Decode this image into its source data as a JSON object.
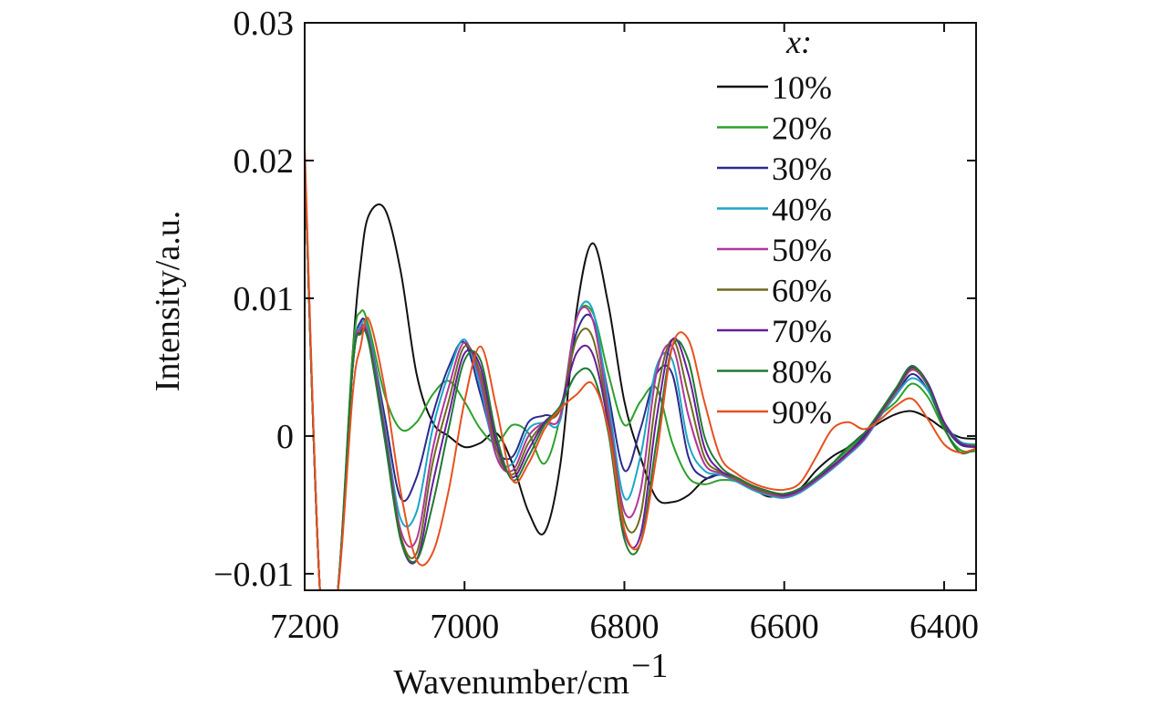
{
  "chart_data": {
    "type": "line",
    "title": "",
    "xlabel": "Wavenumber/cm",
    "xlabel_superscript": "−1",
    "ylabel": "Intensity/a.u.",
    "xlim": [
      7200,
      6360
    ],
    "ylim": [
      -0.0112,
      0.03
    ],
    "x_reversed": true,
    "grid": false,
    "legend_position": "top-right",
    "legend_title": "x:",
    "x_ticks": [
      7200,
      7000,
      6800,
      6600,
      6400
    ],
    "x_tick_labels": [
      "7200",
      "7000",
      "6800",
      "6600",
      "6400"
    ],
    "y_ticks": [
      -0.01,
      0,
      0.01,
      0.02,
      0.03
    ],
    "y_tick_labels": [
      "−0.01",
      "0",
      "0.01",
      "0.02",
      "0.03"
    ],
    "x": [
      7200,
      7180,
      7160,
      7140,
      7130,
      7120,
      7100,
      7080,
      7060,
      7040,
      7020,
      7000,
      6980,
      6960,
      6940,
      6920,
      6900,
      6880,
      6860,
      6840,
      6820,
      6800,
      6780,
      6760,
      6740,
      6720,
      6700,
      6680,
      6660,
      6640,
      6620,
      6600,
      6580,
      6560,
      6540,
      6520,
      6500,
      6480,
      6460,
      6440,
      6420,
      6400,
      6380,
      6360
    ],
    "series": [
      {
        "name": "10%",
        "color": "#111111",
        "values": [
          0.02,
          -0.012,
          -0.012,
          0.006,
          0.0125,
          0.016,
          0.0165,
          0.012,
          0.0045,
          0.001,
          0.0,
          -0.0008,
          -0.0005,
          0.0002,
          -0.002,
          -0.0055,
          -0.007,
          -0.002,
          0.009,
          0.014,
          0.0095,
          0.0025,
          -0.0015,
          -0.0045,
          -0.0048,
          -0.0043,
          -0.0032,
          -0.0028,
          -0.0032,
          -0.0038,
          -0.0044,
          -0.0042,
          -0.0038,
          -0.0025,
          -0.0015,
          -0.0008,
          0.0002,
          0.001,
          0.0016,
          0.0018,
          0.0013,
          0.0005,
          -0.0001,
          -0.0002
        ]
      },
      {
        "name": "20%",
        "color": "#2ca02c",
        "values": [
          0.02,
          -0.012,
          -0.012,
          0.006,
          0.009,
          0.008,
          0.003,
          0.0005,
          0.001,
          0.003,
          0.004,
          0.0025,
          0.0005,
          -0.0005,
          0.0008,
          0.0002,
          -0.002,
          0.0015,
          0.0085,
          0.009,
          0.0045,
          0.0008,
          0.0025,
          0.0035,
          -0.0005,
          -0.003,
          -0.0035,
          -0.0032,
          -0.0033,
          -0.0039,
          -0.0043,
          -0.0043,
          -0.004,
          -0.003,
          -0.002,
          -0.001,
          0.0001,
          0.0015,
          0.0025,
          0.0038,
          0.0028,
          0.0005,
          -0.001,
          -0.0011
        ]
      },
      {
        "name": "30%",
        "color": "#2d2a8c",
        "values": [
          0.02,
          -0.012,
          -0.012,
          0.005,
          0.0083,
          0.0075,
          0.0015,
          -0.0045,
          -0.003,
          0.0015,
          0.005,
          0.0068,
          0.003,
          -0.001,
          -0.0015,
          0.001,
          0.0015,
          0.002,
          0.0075,
          0.0085,
          0.003,
          -0.0025,
          0.0005,
          0.0045,
          0.0045,
          -0.0015,
          -0.003,
          -0.0028,
          -0.0032,
          -0.0038,
          -0.0042,
          -0.0044,
          -0.004,
          -0.0032,
          -0.0022,
          -0.0012,
          0.0,
          0.0015,
          0.003,
          0.0045,
          0.0033,
          0.0008,
          -0.0006,
          -0.0008
        ]
      },
      {
        "name": "40%",
        "color": "#1ba6c9",
        "values": [
          0.02,
          -0.012,
          -0.012,
          0.005,
          0.008,
          0.0075,
          0.0008,
          -0.006,
          -0.0055,
          0.0005,
          0.0045,
          0.007,
          0.0035,
          -0.0015,
          -0.002,
          0.0005,
          0.001,
          0.0012,
          0.0085,
          0.0092,
          0.0025,
          -0.0045,
          -0.0015,
          0.005,
          0.0055,
          -0.0005,
          -0.0025,
          -0.0028,
          -0.0033,
          -0.0039,
          -0.0043,
          -0.0045,
          -0.0041,
          -0.0033,
          -0.0024,
          -0.0014,
          -0.0003,
          0.0014,
          0.003,
          0.0042,
          0.0033,
          0.001,
          -0.0004,
          -0.0006
        ]
      },
      {
        "name": "50%",
        "color": "#b2359a",
        "values": [
          0.02,
          -0.012,
          -0.012,
          0.005,
          0.0078,
          0.0072,
          0.0005,
          -0.0068,
          -0.0075,
          -0.001,
          0.0035,
          0.0068,
          0.004,
          -0.0015,
          -0.0025,
          0.0,
          0.001,
          0.0015,
          0.0085,
          0.0085,
          0.0018,
          -0.0055,
          -0.004,
          0.0045,
          0.0065,
          0.0015,
          -0.002,
          -0.0027,
          -0.0032,
          -0.0038,
          -0.0042,
          -0.0044,
          -0.004,
          -0.0032,
          -0.0023,
          -0.0013,
          -0.0002,
          0.0015,
          0.0032,
          0.0048,
          0.0036,
          0.0009,
          -0.0005,
          -0.0007
        ]
      },
      {
        "name": "60%",
        "color": "#6e6a1f",
        "values": [
          0.02,
          -0.012,
          -0.012,
          0.005,
          0.0076,
          0.007,
          0.0002,
          -0.0072,
          -0.0085,
          -0.002,
          0.0025,
          0.0065,
          0.0045,
          -0.001,
          -0.0028,
          -0.0005,
          0.001,
          0.002,
          0.007,
          0.0072,
          0.0012,
          -0.0062,
          -0.0058,
          0.0028,
          0.007,
          0.003,
          -0.0015,
          -0.0026,
          -0.0031,
          -0.0037,
          -0.0041,
          -0.0043,
          -0.0039,
          -0.0031,
          -0.0022,
          -0.0012,
          -0.0001,
          0.0016,
          0.0033,
          0.0049,
          0.0037,
          0.0009,
          -0.0005,
          -0.0007
        ]
      },
      {
        "name": "70%",
        "color": "#6a1b9a",
        "values": [
          0.02,
          -0.012,
          -0.012,
          0.005,
          0.0075,
          0.0069,
          0.0,
          -0.0075,
          -0.009,
          -0.0035,
          0.0015,
          0.006,
          0.005,
          -0.0005,
          -0.003,
          -0.001,
          0.001,
          0.0022,
          0.006,
          0.006,
          0.0008,
          -0.007,
          -0.0072,
          0.0012,
          0.007,
          0.0045,
          -0.0008,
          -0.0025,
          -0.003,
          -0.0036,
          -0.004,
          -0.0043,
          -0.0039,
          -0.0031,
          -0.0022,
          -0.0012,
          -0.0001,
          0.0017,
          0.0034,
          0.005,
          0.0038,
          0.001,
          -0.0005,
          -0.0008
        ]
      },
      {
        "name": "80%",
        "color": "#1e7a32",
        "values": [
          0.02,
          -0.012,
          -0.012,
          0.005,
          0.0074,
          0.0068,
          -0.0002,
          -0.0075,
          -0.009,
          -0.005,
          0.0005,
          0.0055,
          0.0055,
          0.0,
          -0.0032,
          -0.0015,
          0.0008,
          0.0022,
          0.0045,
          0.0045,
          0.0002,
          -0.0075,
          -0.0078,
          -0.0005,
          0.0065,
          0.0055,
          0.0,
          -0.0022,
          -0.003,
          -0.0036,
          -0.004,
          -0.0042,
          -0.0038,
          -0.003,
          -0.002,
          -0.0008,
          0.0002,
          0.0018,
          0.0035,
          0.0051,
          0.0036,
          0.0006,
          -0.0012,
          -0.0009
        ]
      },
      {
        "name": "90%",
        "color": "#e8501f",
        "values": [
          0.021,
          -0.012,
          -0.012,
          0.003,
          0.0065,
          0.0085,
          0.0035,
          -0.004,
          -0.009,
          -0.0085,
          -0.004,
          0.0025,
          0.0065,
          0.002,
          -0.0032,
          -0.002,
          0.0005,
          0.002,
          0.003,
          0.0038,
          0.0005,
          -0.0068,
          -0.0078,
          -0.0015,
          0.0065,
          0.007,
          0.0025,
          -0.0015,
          -0.0027,
          -0.0034,
          -0.0038,
          -0.0039,
          -0.0034,
          -0.0015,
          0.0005,
          0.001,
          0.0005,
          0.0012,
          0.0022,
          0.0027,
          0.0012,
          -0.0006,
          -0.0012,
          -0.0009
        ]
      }
    ]
  }
}
